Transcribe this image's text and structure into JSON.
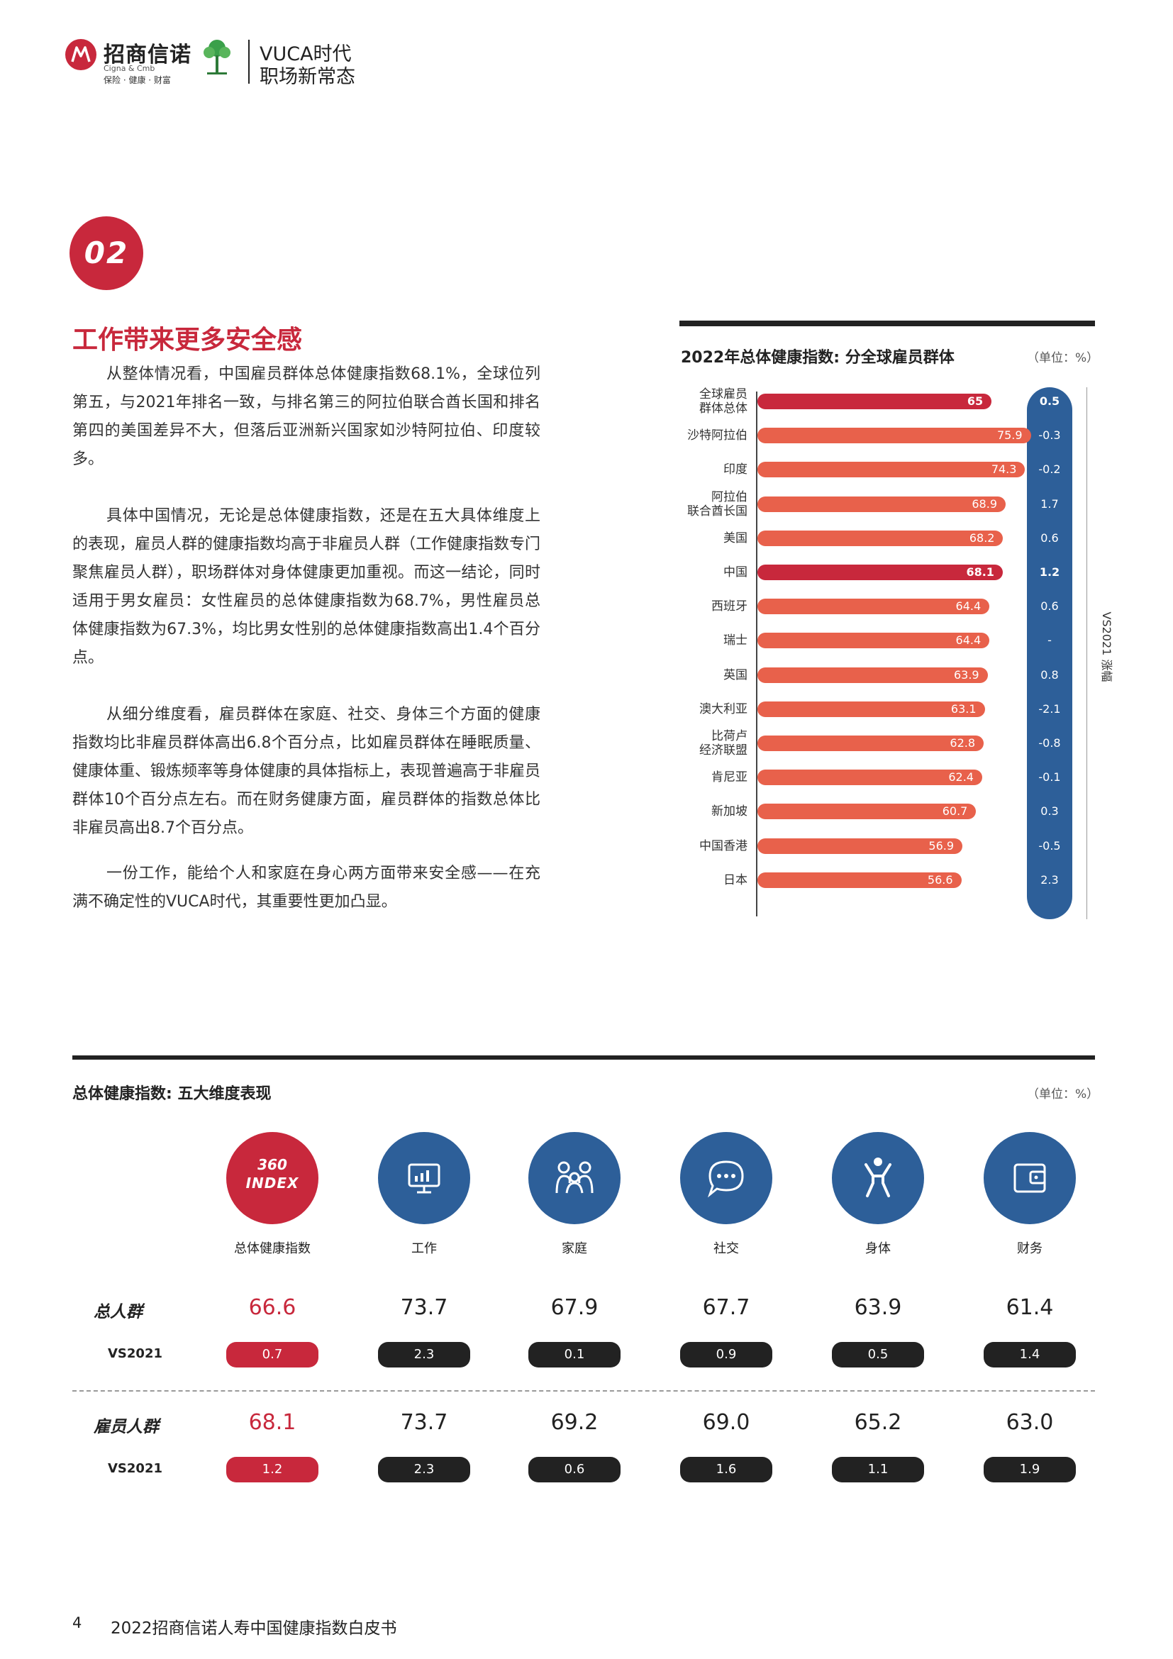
{
  "header": {
    "brand": "招商信诺",
    "brand_sub": "Cigna & Cmb",
    "brand_tag": "保险 · 健康 · 财富",
    "title_line1": "VUCA时代",
    "title_line2": "职场新常态"
  },
  "section": {
    "number": "02",
    "heading": "工作带来更多安全感",
    "paragraphs": [
      "从整体情况看，中国雇员群体总体健康指数68.1%，全球位列第五，与2021年排名一致，与排名第三的阿拉伯联合酋长国和排名第四的美国差异不大，但落后亚洲新兴国家如沙特阿拉伯、印度较多。",
      "具体中国情况，无论是总体健康指数，还是在五大具体维度上的表现，雇员人群的健康指数均高于非雇员人群（工作健康指数专门聚焦雇员人群），职场群体对身体健康更加重视。而这一结论，同时适用于男女雇员：女性雇员的总体健康指数为68.7%，男性雇员总体健康指数为67.3%，均比男女性别的总体健康指数高出1.4个百分点。",
      "从细分维度看，雇员群体在家庭、社交、身体三个方面的健康指数均比非雇员群体高出6.8个百分点，比如雇员群体在睡眠质量、健康体重、锻炼频率等身体健康的具体指标上，表现普遍高于非雇员群体10个百分点左右。而在财务健康方面，雇员群体的指数总体比非雇员高出8.7个百分点。",
      "一份工作，能给个人和家庭在身心两方面带来安全感——在充满不确定性的VUCA时代，其重要性更加凸显。"
    ]
  },
  "chart_data": {
    "type": "bar",
    "title": "2022年总体健康指数: 分全球雇员群体",
    "unit": "（单位：%）",
    "vs_label": "VS2021 涨幅",
    "categories": [
      "全球雇员群体总体",
      "沙特阿拉伯",
      "印度",
      "阿拉伯联合酋长国",
      "美国",
      "中国",
      "西班牙",
      "瑞士",
      "英国",
      "澳大利亚",
      "比荷卢经济联盟",
      "肯尼亚",
      "新加坡",
      "中国香港",
      "日本"
    ],
    "category_lines": [
      [
        "全球雇员",
        "群体总体"
      ],
      [
        "沙特阿拉伯"
      ],
      [
        "印度"
      ],
      [
        "阿拉伯",
        "联合酋长国"
      ],
      [
        "美国"
      ],
      [
        "中国"
      ],
      [
        "西班牙"
      ],
      [
        "瑞士"
      ],
      [
        "英国"
      ],
      [
        "澳大利亚"
      ],
      [
        "比荷卢",
        "经济联盟"
      ],
      [
        "肯尼亚"
      ],
      [
        "新加坡"
      ],
      [
        "中国香港"
      ],
      [
        "日本"
      ]
    ],
    "values": [
      65,
      75.9,
      74.3,
      68.9,
      68.2,
      68.1,
      64.4,
      64.4,
      63.9,
      63.1,
      62.8,
      62.4,
      60.7,
      56.9,
      56.6
    ],
    "value_labels": [
      "65",
      "75.9",
      "74.3",
      "68.9",
      "68.2",
      "68.1",
      "64.4",
      "64.4",
      "63.9",
      "63.1",
      "62.8",
      "62.4",
      "60.7",
      "56.9",
      "56.6"
    ],
    "vs2021": [
      "0.5",
      "-0.3",
      "-0.2",
      "1.7",
      "0.6",
      "1.2",
      "0.6",
      "-",
      "0.8",
      "-2.1",
      "-0.8",
      "-0.1",
      "0.3",
      "-0.5",
      "2.3"
    ],
    "highlight": [
      0,
      5
    ],
    "highlight_color": "#c8283c",
    "bar_color": "#e8614b",
    "vs_color": "#2d5f99"
  },
  "dimensions": {
    "title": "总体健康指数: 五大维度表现",
    "unit": "（单位：%）",
    "index_badge": [
      "360",
      "INDEX"
    ],
    "labels": [
      "总体健康指数",
      "工作",
      "家庭",
      "社交",
      "身体",
      "财务"
    ],
    "icons": [
      "360-index-icon",
      "monitor-chart-icon",
      "family-icon",
      "chat-bubble-icon",
      "person-exercise-icon",
      "wallet-icon"
    ],
    "rows": [
      {
        "name": "总人群",
        "values": [
          "66.6",
          "73.7",
          "67.9",
          "67.7",
          "63.9",
          "61.4"
        ],
        "vs_label": "VS2021",
        "vs": [
          "0.7",
          "2.3",
          "0.1",
          "0.9",
          "0.5",
          "1.4"
        ]
      },
      {
        "name": "雇员人群",
        "values": [
          "68.1",
          "73.7",
          "69.2",
          "69.0",
          "65.2",
          "63.0"
        ],
        "vs_label": "VS2021",
        "vs": [
          "1.2",
          "2.3",
          "0.6",
          "1.6",
          "1.1",
          "1.9"
        ]
      }
    ]
  },
  "footer": {
    "page": "4",
    "title": "2022招商信诺人寿中国健康指数白皮书"
  }
}
